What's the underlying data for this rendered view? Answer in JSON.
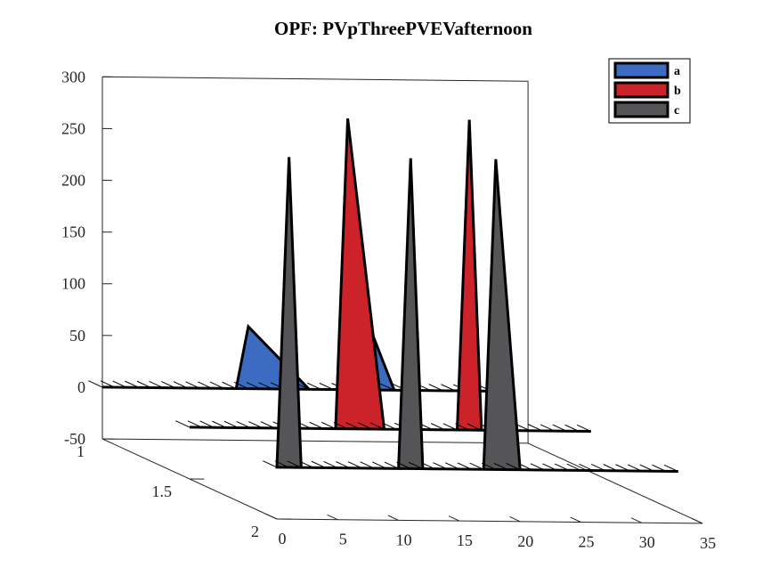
{
  "chart_data": {
    "type": "waterfall-3d",
    "title": "OPF: PVpThreePVEVafternoon",
    "xlabel": "",
    "ylabel": "",
    "zlabel": "",
    "x_ticks": [
      "0",
      "5",
      "10",
      "15",
      "20",
      "25",
      "30",
      "35"
    ],
    "y_ticks": [
      "1",
      "1.5",
      "2"
    ],
    "z_ticks": [
      "300",
      "250",
      "200",
      "150",
      "100",
      "50",
      "0",
      "-50"
    ],
    "xlim": [
      0,
      35
    ],
    "ylim": [
      1,
      2
    ],
    "zlim": [
      -50,
      300
    ],
    "legend_position": "top-right",
    "grid": false,
    "series": [
      {
        "name": "a",
        "color": "#3b6cc1",
        "x": [
          0,
          5,
          9,
          10,
          11,
          12,
          17,
          18,
          19,
          20,
          22,
          24,
          30,
          33
        ],
        "values": [
          0,
          0,
          0,
          0,
          0,
          60,
          0,
          0,
          0,
          0,
          60,
          0,
          0,
          0
        ]
      },
      {
        "name": "b",
        "color": "#cc2229",
        "x": [
          0,
          5,
          10,
          11,
          12,
          13,
          16,
          17,
          18,
          19,
          21,
          22,
          23,
          24,
          33
        ],
        "values": [
          0,
          0,
          0,
          0,
          0,
          300,
          0,
          0,
          0,
          0,
          0,
          0,
          300,
          0,
          0
        ]
      },
      {
        "name": "c",
        "color": "#555457",
        "x": [
          0,
          1,
          2,
          5,
          10,
          11,
          12,
          16,
          17,
          18,
          20,
          21,
          22,
          33
        ],
        "values": [
          0,
          300,
          0,
          0,
          0,
          300,
          0,
          0,
          0,
          300,
          0,
          0,
          0,
          0
        ]
      }
    ],
    "layer_y": [
      1,
      1.5,
      2
    ]
  }
}
